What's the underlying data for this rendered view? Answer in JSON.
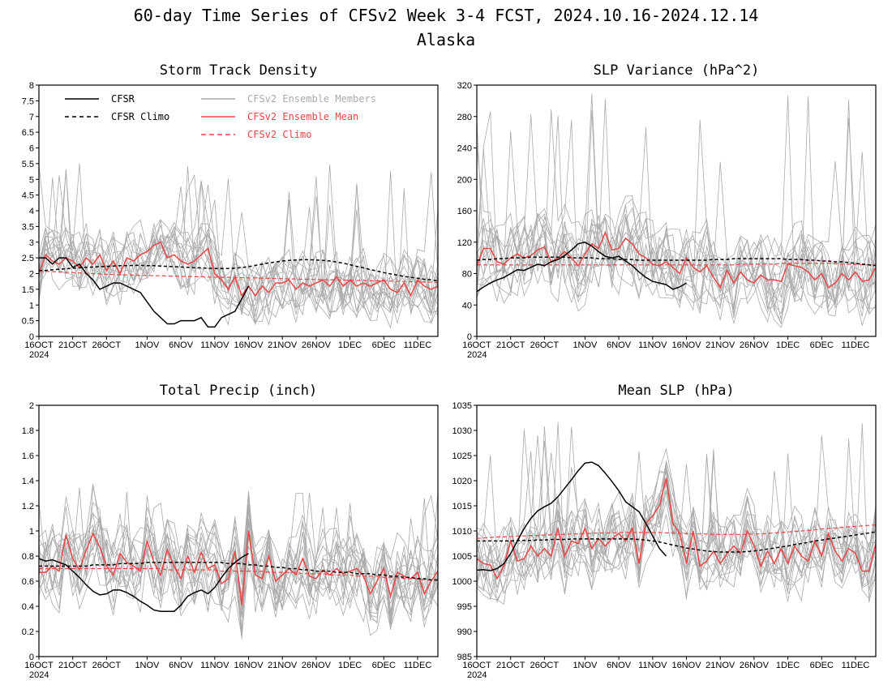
{
  "page": {
    "title": "60-day Time Series of CFSv2 Week 3-4 FCST, 2024.10.16-2024.12.14",
    "subtitle": "Alaska"
  },
  "legend": {
    "cfsr": "CFSR",
    "cfsr_climo": "CFSR Climo",
    "ens_members": "CFSv2 Ensemble Members",
    "ens_mean": "CFSv2 Ensemble Mean",
    "cfsv2_climo": "CFSv2 Climo"
  },
  "colors": {
    "cfsr": "#000000",
    "cfsr_climo": "#000000",
    "ens_members": "#aaaaaa",
    "ens_mean": "#ee4444",
    "cfsv2_climo": "#ee4444"
  },
  "x_ticks": [
    "16OCT",
    "21OCT",
    "26OCT",
    "1NOV",
    "6NOV",
    "11NOV",
    "16NOV",
    "21NOV",
    "26NOV",
    "1DEC",
    "6DEC",
    "11DEC"
  ],
  "x_year": "2024",
  "chart_data": [
    {
      "type": "line",
      "title": "Storm Track Density",
      "ylim": [
        0,
        8
      ],
      "y_ticks": [
        "0",
        "0.5",
        "1",
        "1.5",
        "2",
        "2.5",
        "3",
        "3.5",
        "4",
        "4.5",
        "5",
        "5.5",
        "6",
        "6.5",
        "7",
        "7.5",
        "8"
      ],
      "series": [
        {
          "name": "CFSR",
          "day_start": 0,
          "values": [
            2.5,
            2.5,
            2.3,
            2.5,
            2.5,
            2.2,
            2.3,
            2.0,
            1.8,
            1.5,
            1.6,
            1.7,
            1.7,
            1.6,
            1.5,
            1.4,
            1.1,
            0.8,
            0.6,
            0.4,
            0.4,
            0.5,
            0.5,
            0.5,
            0.6,
            0.3,
            0.3,
            0.6,
            0.7,
            0.8,
            1.2,
            1.6
          ]
        },
        {
          "name": "CFSR Climo",
          "day_start": 0,
          "values": [
            2.1,
            2.1,
            2.12,
            2.14,
            2.15,
            2.17,
            2.18,
            2.2,
            2.21,
            2.22,
            2.23,
            2.24,
            2.25,
            2.25,
            2.26,
            2.26,
            2.25,
            2.25,
            2.24,
            2.23,
            2.22,
            2.21,
            2.2,
            2.19,
            2.18,
            2.17,
            2.16,
            2.16,
            2.16,
            2.17,
            2.19,
            2.22,
            2.26,
            2.3,
            2.34,
            2.37,
            2.4,
            2.42,
            2.43,
            2.44,
            2.44,
            2.43,
            2.42,
            2.4,
            2.37,
            2.33,
            2.28,
            2.23,
            2.18,
            2.13,
            2.08,
            2.03,
            1.99,
            1.95,
            1.91,
            1.88,
            1.85,
            1.82,
            1.8,
            1.77
          ]
        },
        {
          "name": "CFSv2 Ensemble Mean",
          "day_start": 0,
          "values": [
            2.0,
            2.6,
            2.4,
            2.3,
            2.5,
            2.4,
            2.2,
            2.5,
            2.3,
            2.6,
            2.1,
            2.4,
            2.0,
            2.5,
            2.4,
            2.6,
            2.7,
            2.9,
            3.0,
            2.5,
            2.6,
            2.4,
            2.3,
            2.4,
            2.6,
            2.8,
            2.0,
            1.8,
            1.5,
            1.9,
            1.3,
            1.6,
            1.3,
            1.6,
            1.4,
            1.7,
            1.7,
            1.8,
            1.5,
            1.7,
            1.6,
            1.7,
            1.8,
            1.6,
            1.9,
            1.6,
            1.8,
            1.6,
            1.7,
            1.6,
            1.7,
            1.8,
            1.5,
            1.4,
            1.7,
            1.3,
            1.8,
            1.6,
            1.5,
            1.6
          ]
        },
        {
          "name": "CFSv2 Climo",
          "day_start": 0,
          "values": [
            2.08,
            2.07,
            2.06,
            2.05,
            2.04,
            2.03,
            2.02,
            2.01,
            2.0,
            1.99,
            1.98,
            1.97,
            1.96,
            1.96,
            1.95,
            1.94,
            1.94,
            1.93,
            1.93,
            1.92,
            1.92,
            1.91,
            1.91,
            1.9,
            1.9,
            1.89,
            1.89,
            1.88,
            1.88,
            1.87,
            1.87,
            1.86,
            1.86,
            1.85,
            1.85,
            1.84,
            1.84,
            1.83,
            1.83,
            1.82,
            1.82,
            1.81,
            1.81,
            1.8,
            1.8,
            1.79,
            1.79,
            1.78,
            1.78,
            1.77,
            1.77,
            1.76,
            1.76,
            1.75,
            1.75,
            1.74,
            1.74,
            1.73,
            1.73,
            1.72
          ]
        }
      ],
      "ensemble": {
        "count": 16,
        "center": 2.0,
        "spread": 0.9,
        "peak": 5.6
      }
    },
    {
      "type": "line",
      "title": "SLP Variance (hPa^2)",
      "ylim": [
        0,
        320
      ],
      "y_ticks": [
        "0",
        "40",
        "80",
        "120",
        "160",
        "200",
        "240",
        "280",
        "320"
      ],
      "series": [
        {
          "name": "CFSR",
          "day_start": 0,
          "values": [
            57,
            63,
            68,
            72,
            75,
            80,
            85,
            84,
            88,
            92,
            90,
            95,
            98,
            103,
            110,
            118,
            120,
            115,
            108,
            102,
            100,
            102,
            96,
            90,
            82,
            75,
            70,
            68,
            66,
            60,
            63,
            68
          ]
        },
        {
          "name": "CFSR Climo",
          "day_start": 0,
          "values": [
            97,
            98,
            98,
            99,
            99,
            100,
            100,
            100,
            101,
            101,
            101,
            101,
            101,
            101,
            100,
            100,
            100,
            100,
            99,
            99,
            99,
            98,
            98,
            98,
            97,
            97,
            97,
            97,
            97,
            97,
            97,
            97,
            97,
            97,
            97,
            98,
            98,
            98,
            99,
            99,
            99,
            99,
            99,
            99,
            99,
            99,
            98,
            98,
            98,
            97,
            97,
            96,
            96,
            95,
            95,
            94,
            93,
            92,
            91,
            90
          ]
        },
        {
          "name": "CFSv2 Ensemble Mean",
          "day_start": 0,
          "values": [
            90,
            112,
            112,
            95,
            92,
            100,
            105,
            100,
            103,
            110,
            114,
            95,
            100,
            108,
            100,
            90,
            105,
            118,
            112,
            132,
            110,
            112,
            125,
            118,
            105,
            100,
            92,
            90,
            95,
            88,
            80,
            100,
            88,
            82,
            90,
            75,
            62,
            84,
            68,
            82,
            72,
            68,
            78,
            72,
            72,
            70,
            92,
            90,
            88,
            82,
            72,
            80,
            62,
            68,
            80,
            72,
            82,
            70,
            72,
            88
          ]
        },
        {
          "name": "CFSv2 Climo",
          "day_start": 0,
          "values": [
            91,
            91,
            91,
            91,
            91,
            91,
            91,
            91,
            91,
            91,
            91,
            91,
            91,
            91,
            91,
            91,
            91,
            91,
            91,
            91,
            91,
            91,
            91,
            91,
            91,
            91,
            91,
            91,
            91,
            91,
            91,
            91,
            91,
            91,
            91,
            91,
            91,
            91,
            91,
            92,
            92,
            92,
            92,
            92,
            92,
            93,
            93,
            93,
            93,
            93,
            93,
            93,
            93,
            93,
            92,
            92,
            92,
            91,
            91,
            91
          ]
        }
      ],
      "ensemble": {
        "count": 16,
        "center": 88,
        "spread": 45,
        "peak": 318
      }
    },
    {
      "type": "line",
      "title": "Total Precip (inch)",
      "ylim": [
        0,
        2
      ],
      "y_ticks": [
        "0",
        "0.2",
        "0.4",
        "0.6",
        "0.8",
        "1",
        "1.2",
        "1.4",
        "1.6",
        "1.8",
        "2"
      ],
      "series": [
        {
          "name": "CFSR",
          "day_start": 0,
          "values": [
            0.78,
            0.76,
            0.77,
            0.75,
            0.73,
            0.68,
            0.63,
            0.57,
            0.52,
            0.49,
            0.5,
            0.53,
            0.53,
            0.51,
            0.48,
            0.44,
            0.41,
            0.37,
            0.36,
            0.36,
            0.36,
            0.41,
            0.48,
            0.51,
            0.53,
            0.5,
            0.55,
            0.63,
            0.7,
            0.75,
            0.79,
            0.82
          ]
        },
        {
          "name": "CFSR Climo",
          "day_start": 0,
          "values": [
            0.72,
            0.72,
            0.72,
            0.72,
            0.72,
            0.72,
            0.72,
            0.72,
            0.73,
            0.73,
            0.73,
            0.73,
            0.74,
            0.74,
            0.74,
            0.74,
            0.75,
            0.75,
            0.75,
            0.75,
            0.75,
            0.75,
            0.75,
            0.75,
            0.75,
            0.75,
            0.75,
            0.75,
            0.74,
            0.74,
            0.74,
            0.73,
            0.73,
            0.72,
            0.72,
            0.71,
            0.71,
            0.7,
            0.7,
            0.69,
            0.69,
            0.68,
            0.68,
            0.68,
            0.67,
            0.67,
            0.67,
            0.66,
            0.66,
            0.66,
            0.65,
            0.65,
            0.64,
            0.64,
            0.63,
            0.63,
            0.62,
            0.62,
            0.61,
            0.61
          ]
        },
        {
          "name": "CFSv2 Ensemble Mean",
          "day_start": 0,
          "values": [
            0.67,
            0.67,
            0.72,
            0.68,
            0.97,
            0.78,
            0.69,
            0.85,
            0.98,
            0.87,
            0.72,
            0.65,
            0.82,
            0.75,
            0.72,
            0.68,
            0.92,
            0.75,
            0.65,
            0.85,
            0.72,
            0.62,
            0.8,
            0.67,
            0.83,
            0.7,
            0.73,
            0.58,
            0.62,
            0.84,
            0.41,
            1.0,
            0.65,
            0.62,
            0.8,
            0.6,
            0.65,
            0.7,
            0.65,
            0.78,
            0.64,
            0.62,
            0.69,
            0.65,
            0.7,
            0.66,
            0.68,
            0.7,
            0.64,
            0.5,
            0.6,
            0.7,
            0.48,
            0.67,
            0.64,
            0.62,
            0.67,
            0.5,
            0.6,
            0.68
          ]
        },
        {
          "name": "CFSv2 Climo",
          "day_start": 0,
          "values": [
            0.7,
            0.7,
            0.7,
            0.7,
            0.7,
            0.7,
            0.7,
            0.7,
            0.7,
            0.7,
            0.7,
            0.7,
            0.7,
            0.7,
            0.7,
            0.7,
            0.7,
            0.7,
            0.7,
            0.69,
            0.69,
            0.69,
            0.69,
            0.69,
            0.69,
            0.69,
            0.69,
            0.68,
            0.68,
            0.68,
            0.68,
            0.68,
            0.68,
            0.68,
            0.67,
            0.67,
            0.67,
            0.67,
            0.67,
            0.66,
            0.66,
            0.66,
            0.66,
            0.65,
            0.65,
            0.65,
            0.65,
            0.64,
            0.64,
            0.64,
            0.64,
            0.63,
            0.63,
            0.63,
            0.62,
            0.62,
            0.62,
            0.61,
            0.61,
            0.61
          ]
        }
      ],
      "ensemble": {
        "count": 16,
        "center": 0.7,
        "spread": 0.28,
        "peak": 1.4
      }
    },
    {
      "type": "line",
      "title": "Mean SLP (hPa)",
      "ylim": [
        985,
        1035
      ],
      "y_ticks": [
        "985",
        "990",
        "995",
        "1000",
        "1005",
        "1010",
        "1015",
        "1020",
        "1025",
        "1030",
        "1035"
      ],
      "series": [
        {
          "name": "CFSR",
          "day_start": 0,
          "values": [
            1002.2,
            1002.3,
            1002.1,
            1002.5,
            1003.5,
            1005.5,
            1008.0,
            1010.5,
            1012.5,
            1014.0,
            1014.8,
            1015.5,
            1016.8,
            1018.5,
            1020.2,
            1022.0,
            1023.5,
            1023.7,
            1023.0,
            1021.5,
            1019.8,
            1018.0,
            1015.8,
            1014.8,
            1013.8,
            1011.5,
            1009.0,
            1006.5,
            1005.0
          ]
        },
        {
          "name": "CFSR Climo",
          "day_start": 0,
          "values": [
            1008.0,
            1008.0,
            1008.0,
            1008.0,
            1008.0,
            1008.0,
            1008.1,
            1008.1,
            1008.1,
            1008.2,
            1008.2,
            1008.3,
            1008.3,
            1008.3,
            1008.4,
            1008.4,
            1008.4,
            1008.4,
            1008.4,
            1008.4,
            1008.4,
            1008.4,
            1008.4,
            1008.4,
            1008.3,
            1008.2,
            1008.0,
            1007.8,
            1007.5,
            1007.2,
            1006.9,
            1006.6,
            1006.4,
            1006.2,
            1006.0,
            1005.9,
            1005.8,
            1005.8,
            1005.8,
            1005.8,
            1005.9,
            1006.0,
            1006.2,
            1006.4,
            1006.6,
            1006.8,
            1007.0,
            1007.3,
            1007.5,
            1007.7,
            1008.0,
            1008.2,
            1008.4,
            1008.6,
            1008.8,
            1009.0,
            1009.2,
            1009.4,
            1009.6,
            1009.8
          ]
        },
        {
          "name": "CFSv2 Ensemble Mean",
          "day_start": 0,
          "values": [
            1004.5,
            1003.5,
            1003.2,
            1000.5,
            1003.0,
            1008.0,
            1004.0,
            1004.5,
            1007.0,
            1005.0,
            1006.5,
            1005.0,
            1010.5,
            1005.0,
            1008.0,
            1007.5,
            1010.5,
            1006.5,
            1008.5,
            1007.0,
            1008.5,
            1009.5,
            1008.0,
            1010.5,
            1003.5,
            1011.5,
            1013.0,
            1015.0,
            1020.5,
            1011.5,
            1009.5,
            1003.5,
            1010.0,
            1003.0,
            1004.0,
            1006.0,
            1003.5,
            1005.5,
            1007.0,
            1005.5,
            1010.0,
            1007.0,
            1003.0,
            1006.0,
            1003.5,
            1006.5,
            1003.5,
            1007.0,
            1005.0,
            1004.0,
            1008.0,
            1005.0,
            1009.5,
            1006.0,
            1004.0,
            1006.5,
            1005.5,
            1002.0,
            1002.0,
            1007.5
          ]
        },
        {
          "name": "CFSv2 Climo",
          "day_start": 0,
          "values": [
            1008.5,
            1008.6,
            1008.7,
            1008.8,
            1008.8,
            1008.9,
            1009.0,
            1009.0,
            1009.1,
            1009.1,
            1009.2,
            1009.2,
            1009.3,
            1009.3,
            1009.4,
            1009.4,
            1009.5,
            1009.5,
            1009.6,
            1009.6,
            1009.6,
            1009.7,
            1009.7,
            1009.7,
            1009.7,
            1009.7,
            1009.7,
            1009.7,
            1009.6,
            1009.6,
            1009.5,
            1009.5,
            1009.4,
            1009.4,
            1009.4,
            1009.3,
            1009.3,
            1009.3,
            1009.3,
            1009.3,
            1009.3,
            1009.4,
            1009.4,
            1009.5,
            1009.6,
            1009.7,
            1009.8,
            1009.9,
            1010.0,
            1010.1,
            1010.2,
            1010.4,
            1010.5,
            1010.6,
            1010.7,
            1010.8,
            1010.9,
            1011.0,
            1011.1,
            1011.2
          ]
        }
      ],
      "ensemble": {
        "count": 16,
        "center": 1007.5,
        "spread": 6.5,
        "peak": 1032
      }
    }
  ]
}
